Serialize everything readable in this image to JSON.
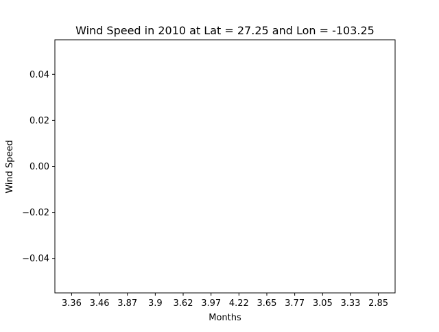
{
  "chart_data": {
    "type": "bar",
    "title": "Wind Speed in 2010 at Lat = 27.25 and Lon = -103.25",
    "xlabel": "Months",
    "ylabel": "Wind Speed",
    "categories": [
      "3.36",
      "3.46",
      "3.87",
      "3.9",
      "3.62",
      "3.97",
      "4.22",
      "3.65",
      "3.77",
      "3.05",
      "3.33",
      "2.85"
    ],
    "values": [
      0,
      0,
      0,
      0,
      0,
      0,
      0,
      0,
      0,
      0,
      0,
      0
    ],
    "ylim": [
      -0.055,
      0.055
    ],
    "yticks": [
      -0.04,
      -0.02,
      0.0,
      0.02,
      0.04
    ],
    "ytick_labels": [
      "−0.04",
      "−0.02",
      "0.00",
      "0.02",
      "0.04"
    ],
    "grid": false,
    "legend": "none",
    "colors": {
      "axis": "#000000",
      "background": "#ffffff"
    }
  }
}
